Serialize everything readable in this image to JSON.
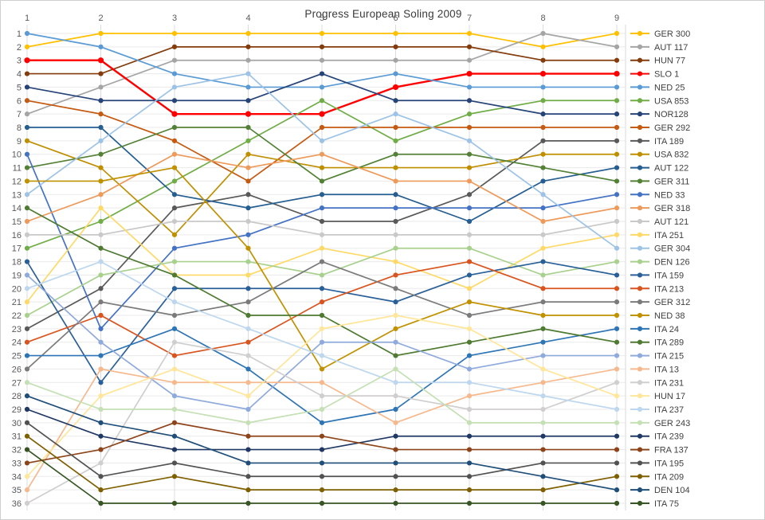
{
  "window": {
    "border_color": "#cfcfcf",
    "background": "#ffffff"
  },
  "chart_data": {
    "type": "line",
    "title": "Progress European Soling 2009",
    "x_axis": {
      "position": "top",
      "ticks": [
        "1",
        "2",
        "3",
        "4",
        "5",
        "6",
        "7",
        "8",
        "9"
      ]
    },
    "y_axis": {
      "min": 1,
      "max": 36,
      "inverted": true,
      "tick_step": 1,
      "label_color": "#595959"
    },
    "grid": true,
    "legend_position": "right",
    "marker": "circle",
    "series": [
      {
        "name": "GER 300",
        "color": "#FFC000",
        "values": [
          2,
          1,
          1,
          1,
          1,
          1,
          1,
          2,
          1
        ]
      },
      {
        "name": "AUT 117",
        "color": "#A5A5A5",
        "values": [
          7,
          5,
          3,
          3,
          3,
          3,
          3,
          1,
          2
        ]
      },
      {
        "name": "HUN 77",
        "color": "#843C0C",
        "values": [
          4,
          4,
          2,
          2,
          2,
          2,
          2,
          3,
          3
        ]
      },
      {
        "name": "SLO 1",
        "color": "#FF0000",
        "highlight": true,
        "values": [
          3,
          3,
          7,
          7,
          7,
          5,
          4,
          4,
          4
        ]
      },
      {
        "name": "NED 25",
        "color": "#5B9BD5",
        "values": [
          1,
          2,
          4,
          5,
          5,
          4,
          5,
          5,
          5
        ]
      },
      {
        "name": "USA 853",
        "color": "#70AD47",
        "values": [
          17,
          15,
          12,
          9,
          6,
          9,
          7,
          6,
          6
        ]
      },
      {
        "name": "NOR128",
        "color": "#264478",
        "values": [
          5,
          6,
          6,
          6,
          4,
          6,
          6,
          7,
          7
        ]
      },
      {
        "name": "GER 292",
        "color": "#C55A11",
        "values": [
          6,
          7,
          9,
          12,
          8,
          8,
          8,
          8,
          8
        ]
      },
      {
        "name": "ITA 189",
        "color": "#595959",
        "values": [
          23,
          20,
          14,
          13,
          15,
          15,
          13,
          9,
          9
        ]
      },
      {
        "name": "USA 832",
        "color": "#BF8F00",
        "values": [
          9,
          11,
          16,
          10,
          11,
          11,
          11,
          10,
          10
        ]
      },
      {
        "name": "AUT 122",
        "color": "#255E91",
        "values": [
          8,
          8,
          13,
          14,
          13,
          13,
          15,
          12,
          11
        ]
      },
      {
        "name": "GER 311",
        "color": "#538135",
        "values": [
          11,
          10,
          8,
          8,
          12,
          10,
          10,
          11,
          12
        ]
      },
      {
        "name": "NED 33",
        "color": "#4472C4",
        "values": [
          10,
          23,
          17,
          16,
          14,
          14,
          14,
          14,
          13
        ]
      },
      {
        "name": "GER 318",
        "color": "#ED9A5B",
        "values": [
          15,
          13,
          10,
          11,
          10,
          12,
          12,
          15,
          14
        ]
      },
      {
        "name": "AUT 121",
        "color": "#C9C9C9",
        "values": [
          16,
          16,
          15,
          15,
          16,
          16,
          16,
          16,
          15
        ]
      },
      {
        "name": "ITA 251",
        "color": "#FFD966",
        "values": [
          21,
          14,
          19,
          19,
          17,
          18,
          20,
          17,
          16
        ]
      },
      {
        "name": "GER 304",
        "color": "#9DC3E6",
        "values": [
          13,
          9,
          5,
          4,
          9,
          7,
          9,
          13,
          17
        ]
      },
      {
        "name": "DEN 126",
        "color": "#A9D18E",
        "values": [
          22,
          19,
          18,
          18,
          19,
          17,
          17,
          19,
          18
        ]
      },
      {
        "name": "ITA 159",
        "color": "#2A6099",
        "values": [
          18,
          27,
          20,
          20,
          20,
          21,
          19,
          18,
          19
        ]
      },
      {
        "name": "ITA 213",
        "color": "#D9541E",
        "values": [
          24,
          22,
          25,
          24,
          21,
          19,
          18,
          20,
          20
        ]
      },
      {
        "name": "GER 312",
        "color": "#7B7B7B",
        "values": [
          26,
          21,
          22,
          21,
          18,
          20,
          22,
          21,
          21
        ]
      },
      {
        "name": "NED 38",
        "color": "#C09200",
        "values": [
          12,
          12,
          11,
          17,
          26,
          23,
          21,
          22,
          22
        ]
      },
      {
        "name": "ITA 24",
        "color": "#2E75B6",
        "values": [
          25,
          25,
          23,
          26,
          30,
          29,
          25,
          24,
          23
        ]
      },
      {
        "name": "ITA 289",
        "color": "#4E7A31",
        "values": [
          14,
          17,
          19,
          22,
          22,
          25,
          24,
          23,
          24
        ]
      },
      {
        "name": "ITA 215",
        "color": "#8FAADC",
        "values": [
          19,
          24,
          28,
          29,
          24,
          24,
          26,
          25,
          25
        ]
      },
      {
        "name": "ITA 13",
        "color": "#F6B98E",
        "values": [
          35,
          26,
          27,
          27,
          27,
          30,
          28,
          27,
          26
        ]
      },
      {
        "name": "ITA 231",
        "color": "#D0CECE",
        "values": [
          36,
          33,
          24,
          25,
          28,
          28,
          29,
          29,
          27
        ]
      },
      {
        "name": "HUN 17",
        "color": "#FFE699",
        "values": [
          34,
          28,
          26,
          28,
          23,
          22,
          23,
          26,
          28
        ]
      },
      {
        "name": "ITA 237",
        "color": "#BDD7EE",
        "values": [
          20,
          18,
          21,
          23,
          25,
          27,
          27,
          28,
          29
        ]
      },
      {
        "name": "GER 243",
        "color": "#C5E0B4",
        "values": [
          27,
          29,
          29,
          30,
          29,
          26,
          30,
          30,
          30
        ]
      },
      {
        "name": "ITA 239",
        "color": "#203864",
        "values": [
          29,
          31,
          32,
          32,
          32,
          31,
          31,
          31,
          31
        ]
      },
      {
        "name": "FRA 137",
        "color": "#8E441A",
        "values": [
          33,
          32,
          30,
          31,
          31,
          32,
          32,
          32,
          32
        ]
      },
      {
        "name": "ITA 195",
        "color": "#525252",
        "values": [
          30,
          34,
          33,
          34,
          34,
          34,
          34,
          33,
          33
        ]
      },
      {
        "name": "ITA 209",
        "color": "#7F6000",
        "values": [
          31,
          35,
          34,
          35,
          35,
          35,
          35,
          35,
          34
        ]
      },
      {
        "name": "DEN 104",
        "color": "#1F4E79",
        "values": [
          28,
          30,
          31,
          33,
          33,
          33,
          33,
          34,
          35
        ]
      },
      {
        "name": "ITA 75",
        "color": "#375623",
        "values": [
          32,
          36,
          36,
          36,
          36,
          36,
          36,
          36,
          36
        ]
      }
    ]
  }
}
